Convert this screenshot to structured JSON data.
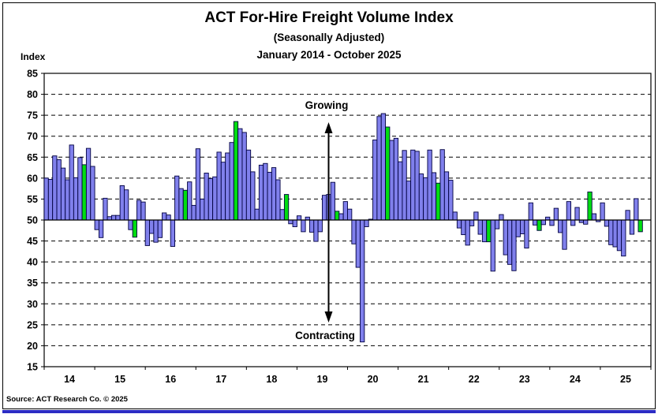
{
  "page": {
    "background": "#ffffff",
    "bottom_rule_color": "#2b2bc4"
  },
  "chart_data": {
    "type": "bar",
    "title": "ACT For-Hire Freight Volume Index",
    "subtitle": "(Seasonally Adjusted)",
    "period": "January 2014 - October 2025",
    "ylabel": "Index",
    "ylim": [
      15,
      85
    ],
    "ytick_step": 5,
    "yticks": [
      85,
      80,
      75,
      70,
      65,
      60,
      55,
      50,
      45,
      40,
      35,
      30,
      25,
      20,
      15
    ],
    "baseline": 50,
    "grid": "horizontal dashed lines every 5 units, solid line at 50",
    "legend": "none",
    "x_tick_labels": [
      "14",
      "15",
      "16",
      "17",
      "18",
      "19",
      "20",
      "21",
      "22",
      "23",
      "24",
      "25"
    ],
    "bar_colors": {
      "default": "#8080ec",
      "october_highlight": "#00dd11",
      "border": "#000040"
    },
    "highlight_note": "The October bar of each year is drawn in green; all other months are blue. Bars rise or fall from the 50 (neutral) baseline.",
    "annotations": {
      "growing": "Growing",
      "contracting": "Contracting"
    },
    "years": [
      {
        "year": 2014,
        "values": [
          60.0,
          59.7,
          65.3,
          64.4,
          62.4,
          59.6,
          67.9,
          60.1,
          64.9,
          63.2,
          67.1,
          62.8
        ]
      },
      {
        "year": 2015,
        "values": [
          47.7,
          45.8,
          55.2,
          50.8,
          51.1,
          51.1,
          58.2,
          57.2,
          47.7,
          45.9,
          54.7,
          54.3
        ]
      },
      {
        "year": 2016,
        "values": [
          43.9,
          46.8,
          44.7,
          45.8,
          51.7,
          51.2,
          43.7,
          60.5,
          57.5,
          57.1,
          59.1,
          53.5
        ]
      },
      {
        "year": 2017,
        "values": [
          67.0,
          55.0,
          61.2,
          59.9,
          60.3,
          66.2,
          63.8,
          66.0,
          68.5,
          73.5,
          71.8,
          70.9
        ]
      },
      {
        "year": 2018,
        "values": [
          66.7,
          61.5,
          52.6,
          63.1,
          63.5,
          61.4,
          62.5,
          59.6,
          52.5,
          56.1,
          49.1,
          48.4
        ]
      },
      {
        "year": 2019,
        "values": [
          51.0,
          47.2,
          50.7,
          47.1,
          44.9,
          47.2,
          55.9,
          56.1,
          59.0,
          52.1,
          51.5,
          54.4
        ]
      },
      {
        "year": 2020,
        "values": [
          52.6,
          44.3,
          38.7,
          20.9,
          48.4,
          50.2,
          69.1,
          74.7,
          75.4,
          72.2,
          69.0,
          69.5
        ]
      },
      {
        "year": 2021,
        "values": [
          63.9,
          66.6,
          59.3,
          66.7,
          66.4,
          61.0,
          60.1,
          66.7,
          61.3,
          58.8,
          66.8,
          61.5
        ]
      },
      {
        "year": 2022,
        "values": [
          59.5,
          51.9,
          48.1,
          46.5,
          44.0,
          48.6,
          51.9,
          46.6,
          44.8,
          44.8,
          37.8,
          47.9
        ]
      },
      {
        "year": 2023,
        "values": [
          51.3,
          41.7,
          39.4,
          37.9,
          46.0,
          46.7,
          43.3,
          54.1,
          48.8,
          47.5,
          48.9,
          50.7
        ]
      },
      {
        "year": 2024,
        "values": [
          48.7,
          52.8,
          47.0,
          43.0,
          54.4,
          48.7,
          53.0,
          49.4,
          49.0,
          56.7,
          51.5,
          49.6
        ]
      },
      {
        "year": 2025,
        "values": [
          54.1,
          48.5,
          44.1,
          43.6,
          42.7,
          41.4,
          52.3,
          46.6,
          55.1,
          47.2
        ]
      }
    ]
  },
  "footer": {
    "source": "Source: ACT Research Co. © 2025"
  }
}
